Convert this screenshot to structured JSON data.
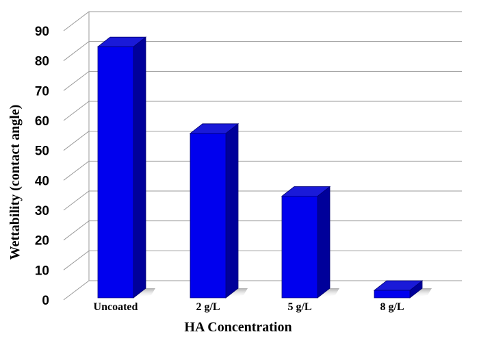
{
  "chart_data": {
    "type": "bar",
    "title": "",
    "xlabel": "HA Concentration",
    "ylabel": "Wettability (contact angle)",
    "categories": [
      "Uncoated",
      "2 g/L",
      "5 g/L",
      "8 g/L"
    ],
    "values": [
      84,
      55,
      34,
      2.5
    ],
    "ylim": [
      0,
      90
    ],
    "yticks": [
      0,
      10,
      20,
      30,
      40,
      50,
      60,
      70,
      80,
      90
    ],
    "grid": true,
    "legend": "none",
    "three_d": true,
    "colors": {
      "bar_front": "#0000ee",
      "bar_top": "#1a1ad8",
      "bar_side": "#00009a",
      "grid": "#9a9a9a"
    }
  }
}
